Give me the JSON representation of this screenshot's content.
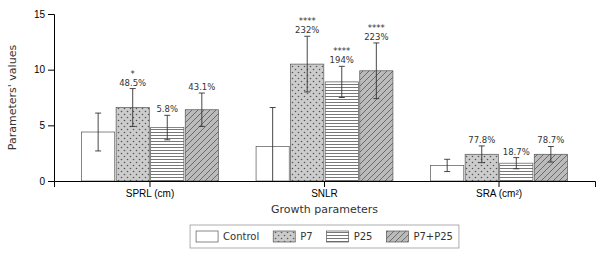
{
  "chart_data": {
    "type": "bar",
    "categories": [
      "SPRL (cm)",
      "SNLR",
      "SRA (cm²)"
    ],
    "xlabel": "Growth parameters",
    "ylabel": "Parameters' values",
    "ylim": [
      0,
      15
    ],
    "yticks": [
      0,
      5,
      10,
      15
    ],
    "grid": false,
    "legend": "bottom",
    "series": [
      {
        "name": "Control",
        "color": "#ffffff",
        "values": [
          4.4,
          3.1,
          1.4
        ],
        "errors": [
          1.7,
          3.5,
          0.55
        ]
      },
      {
        "name": "P7",
        "color": "#cccccc",
        "values": [
          6.6,
          10.5,
          2.4
        ],
        "errors": [
          1.7,
          2.5,
          0.75
        ],
        "percent_labels": [
          "48.5%",
          "232%",
          "77.8%"
        ],
        "sig_labels": [
          "*",
          "****",
          null
        ]
      },
      {
        "name": "P25",
        "color": "#ffffff",
        "values": [
          4.8,
          8.9,
          1.6
        ],
        "errors": [
          1.1,
          1.4,
          0.5
        ],
        "percent_labels": [
          "5.8%",
          "194%",
          "18.7%"
        ],
        "sig_labels": [
          null,
          "****",
          null
        ]
      },
      {
        "name": "P7+P25",
        "color": "#bbbbbb",
        "values": [
          6.4,
          9.9,
          2.4
        ],
        "errors": [
          1.5,
          2.5,
          0.7
        ],
        "percent_labels": [
          "43.1%",
          "223%",
          "78.7%"
        ],
        "sig_labels": [
          null,
          "****",
          null
        ]
      }
    ]
  }
}
